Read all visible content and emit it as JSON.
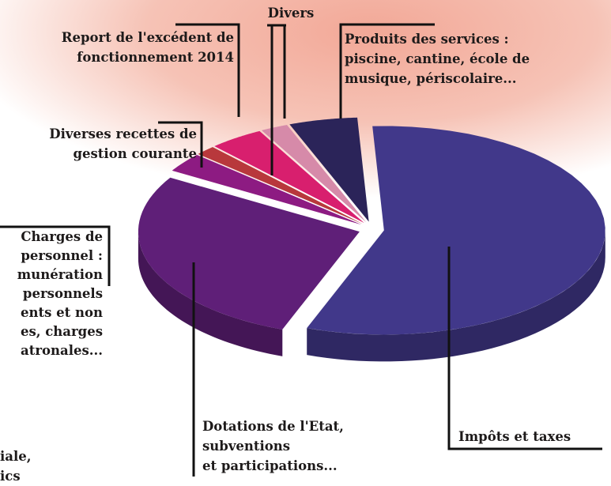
{
  "chart_data": {
    "type": "pie",
    "categories": [
      "Impôts et taxes",
      "Dotations de l'Etat,\nsubventions\net participations...",
      "Diverses recettes de\ngestion courante",
      null,
      "Report de l'excédent de\nfonctionnement 2014",
      "Divers",
      "Produits des services :\npiscine, cantine, école de\nmusique, périscolaire..."
    ],
    "values": [
      56.5,
      28,
      3,
      1.5,
      4,
      2,
      5
    ],
    "colors": [
      "#41388a",
      "#5f1f78",
      "#8d1b82",
      "#b8383c",
      "#d81f6e",
      "#d68aa9",
      "#2b2459"
    ],
    "annotations": [
      "Charges de\npersonnel :\nmunération\npersonnels\nents et non\nes, charges\natronales...",
      "iale,\nics"
    ]
  }
}
